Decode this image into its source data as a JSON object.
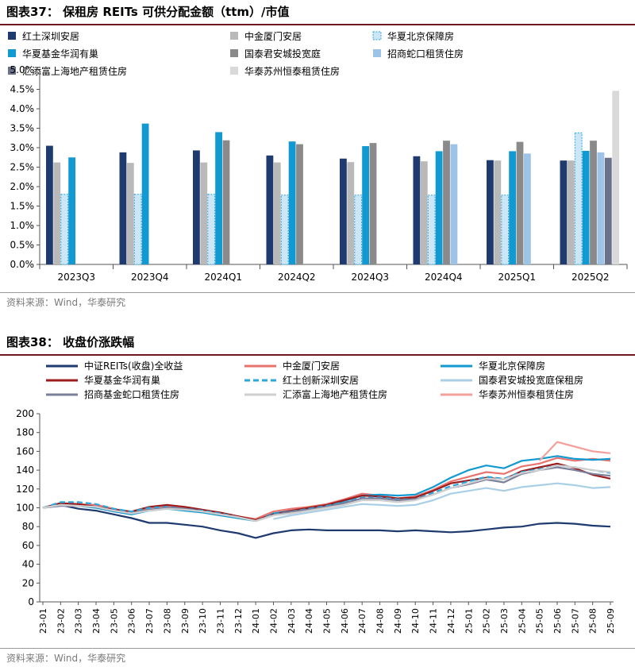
{
  "figure1": {
    "header": "图表37： 保租房 REITs 可供分配金额（ttm）/市值",
    "source": "资料来源：Wind，华泰研究"
  },
  "figure2": {
    "header": "图表38： 收盘价涨跌幅",
    "source": "资料来源：Wind，华泰研究"
  },
  "chart_data": [
    {
      "type": "bar",
      "title": "",
      "xlabel": "",
      "ylabel": "",
      "ylim": [
        0,
        5.0
      ],
      "yticks": [
        "0.0%",
        "0.5%",
        "1.0%",
        "1.5%",
        "2.0%",
        "2.5%",
        "3.0%",
        "3.5%",
        "4.0%",
        "4.5%",
        "5.0%"
      ],
      "grid": false,
      "legend_position": "top",
      "categories": [
        "2023Q3",
        "2023Q4",
        "2024Q1",
        "2024Q2",
        "2024Q3",
        "2024Q4",
        "2025Q1",
        "2025Q2"
      ],
      "series": [
        {
          "name": "红土深圳安居",
          "color": "#1f3a6e",
          "pattern": "solid",
          "values": [
            3.05,
            2.88,
            2.93,
            2.8,
            2.72,
            2.78,
            2.68,
            2.67
          ]
        },
        {
          "name": "中金厦门安居",
          "color": "#b9b9b9",
          "pattern": "solid",
          "values": [
            2.62,
            2.61,
            2.62,
            2.62,
            2.63,
            2.65,
            2.67,
            2.67
          ]
        },
        {
          "name": "华夏北京保障房",
          "color": "#cde6f5",
          "pattern": "dashed",
          "values": [
            1.8,
            1.8,
            1.8,
            1.78,
            1.78,
            1.78,
            1.78,
            3.38
          ]
        },
        {
          "name": "华夏基金华润有巢",
          "color": "#1199d2",
          "pattern": "solid",
          "values": [
            2.75,
            3.62,
            3.4,
            3.16,
            3.04,
            2.91,
            2.91,
            2.92
          ]
        },
        {
          "name": "国泰君安城投宽庭",
          "color": "#8a8a8a",
          "pattern": "solid",
          "values": [
            null,
            null,
            3.19,
            3.09,
            3.12,
            3.18,
            3.15,
            3.18
          ]
        },
        {
          "name": "招商蛇口租赁住房",
          "color": "#9dc3e6",
          "pattern": "solid",
          "values": [
            null,
            null,
            null,
            null,
            null,
            3.09,
            2.85,
            2.88
          ]
        },
        {
          "name": "汇添富上海地产租赁住房",
          "color": "#6b7188",
          "pattern": "solid",
          "values": [
            null,
            null,
            null,
            null,
            null,
            null,
            null,
            2.74
          ]
        },
        {
          "name": "华泰苏州恒泰租赁住房",
          "color": "#d9d9d9",
          "pattern": "solid",
          "values": [
            null,
            null,
            null,
            null,
            null,
            null,
            null,
            4.46
          ]
        }
      ]
    },
    {
      "type": "line",
      "title": "",
      "xlabel": "",
      "ylabel": "",
      "ylim": [
        0,
        200
      ],
      "yticks": [
        0,
        20,
        40,
        60,
        80,
        100,
        120,
        140,
        160,
        180,
        200
      ],
      "grid": false,
      "legend_position": "top",
      "x": [
        "23-01",
        "23-02",
        "23-03",
        "23-04",
        "23-05",
        "23-06",
        "23-07",
        "23-08",
        "23-09",
        "23-10",
        "23-11",
        "23-12",
        "24-01",
        "24-02",
        "24-03",
        "24-04",
        "24-05",
        "24-06",
        "24-07",
        "24-08",
        "24-09",
        "24-10",
        "24-11",
        "24-12",
        "25-01",
        "25-02",
        "25-03",
        "25-04",
        "25-05",
        "25-06",
        "25-07",
        "25-08",
        "25-09"
      ],
      "series": [
        {
          "name": "中证REITs(收盘)全收益",
          "color": "#1f3a6e",
          "dash": "solid",
          "values": [
            100,
            103,
            99,
            97,
            93,
            89,
            84,
            84,
            82,
            80,
            76,
            73,
            68,
            73,
            76,
            77,
            76,
            76,
            76,
            76,
            75,
            76,
            75,
            74,
            75,
            77,
            79,
            80,
            83,
            84,
            83,
            81,
            80
          ]
        },
        {
          "name": "中金厦门安居",
          "color": "#e8736f",
          "dash": "solid",
          "values": [
            100,
            104,
            104,
            103,
            99,
            95,
            100,
            102,
            100,
            97,
            93,
            91,
            88,
            96,
            99,
            101,
            104,
            109,
            115,
            113,
            110,
            112,
            119,
            128,
            133,
            138,
            136,
            144,
            147,
            153,
            150,
            152,
            150
          ]
        },
        {
          "name": "华夏北京保障房",
          "color": "#1199d2",
          "dash": "solid",
          "values": [
            100,
            103,
            102,
            100,
            96,
            93,
            97,
            99,
            97,
            95,
            92,
            89,
            86,
            94,
            97,
            99,
            102,
            107,
            113,
            114,
            113,
            114,
            122,
            132,
            140,
            145,
            142,
            150,
            152,
            155,
            152,
            151,
            152
          ]
        },
        {
          "name": "华夏基金华润有巢",
          "color": "#9c1c1c",
          "dash": "solid",
          "values": [
            100,
            105,
            104,
            101,
            98,
            96,
            101,
            103,
            101,
            98,
            95,
            91,
            87,
            93,
            97,
            100,
            103,
            108,
            113,
            112,
            110,
            111,
            118,
            126,
            129,
            132,
            130,
            139,
            143,
            147,
            142,
            135,
            131
          ]
        },
        {
          "name": "红土创新深圳安居",
          "color": "#2ba6de",
          "dash": "dashed",
          "values": [
            100,
            106,
            106,
            104,
            99,
            96,
            100,
            101,
            99,
            97,
            94,
            90,
            86,
            93,
            96,
            99,
            102,
            106,
            111,
            111,
            109,
            109,
            116,
            123,
            128,
            133,
            131,
            138,
            141,
            145,
            143,
            140,
            137
          ]
        },
        {
          "name": "国泰君安城投宽庭保租房",
          "color": "#a9cfe6",
          "dash": "solid",
          "values": [
            null,
            null,
            null,
            null,
            null,
            null,
            null,
            null,
            null,
            null,
            null,
            null,
            null,
            88,
            92,
            95,
            98,
            101,
            104,
            103,
            102,
            103,
            108,
            115,
            118,
            121,
            118,
            122,
            124,
            126,
            124,
            121,
            122
          ]
        },
        {
          "name": "招商基金蛇口租赁住房",
          "color": "#7a7f9a",
          "dash": "solid",
          "values": [
            100,
            102,
            102,
            101,
            97,
            94,
            98,
            100,
            99,
            96,
            93,
            90,
            86,
            92,
            96,
            98,
            101,
            105,
            110,
            110,
            108,
            109,
            114,
            121,
            125,
            130,
            127,
            136,
            140,
            143,
            140,
            136,
            134
          ]
        },
        {
          "name": "汇添富上海地产租赁住房",
          "color": "#cfcfcf",
          "dash": "solid",
          "values": [
            100,
            103,
            102,
            101,
            97,
            94,
            97,
            99,
            98,
            96,
            93,
            90,
            86,
            92,
            94,
            97,
            100,
            103,
            108,
            108,
            106,
            108,
            114,
            121,
            126,
            131,
            130,
            137,
            140,
            145,
            143,
            140,
            138
          ]
        },
        {
          "name": "华泰苏州恒泰租赁住房",
          "color": "#f4a09a",
          "dash": "solid",
          "values": [
            null,
            null,
            null,
            null,
            null,
            null,
            null,
            null,
            null,
            null,
            null,
            null,
            null,
            null,
            null,
            null,
            null,
            null,
            null,
            null,
            null,
            null,
            null,
            null,
            null,
            null,
            null,
            null,
            150,
            170,
            165,
            160,
            158
          ]
        }
      ]
    }
  ]
}
